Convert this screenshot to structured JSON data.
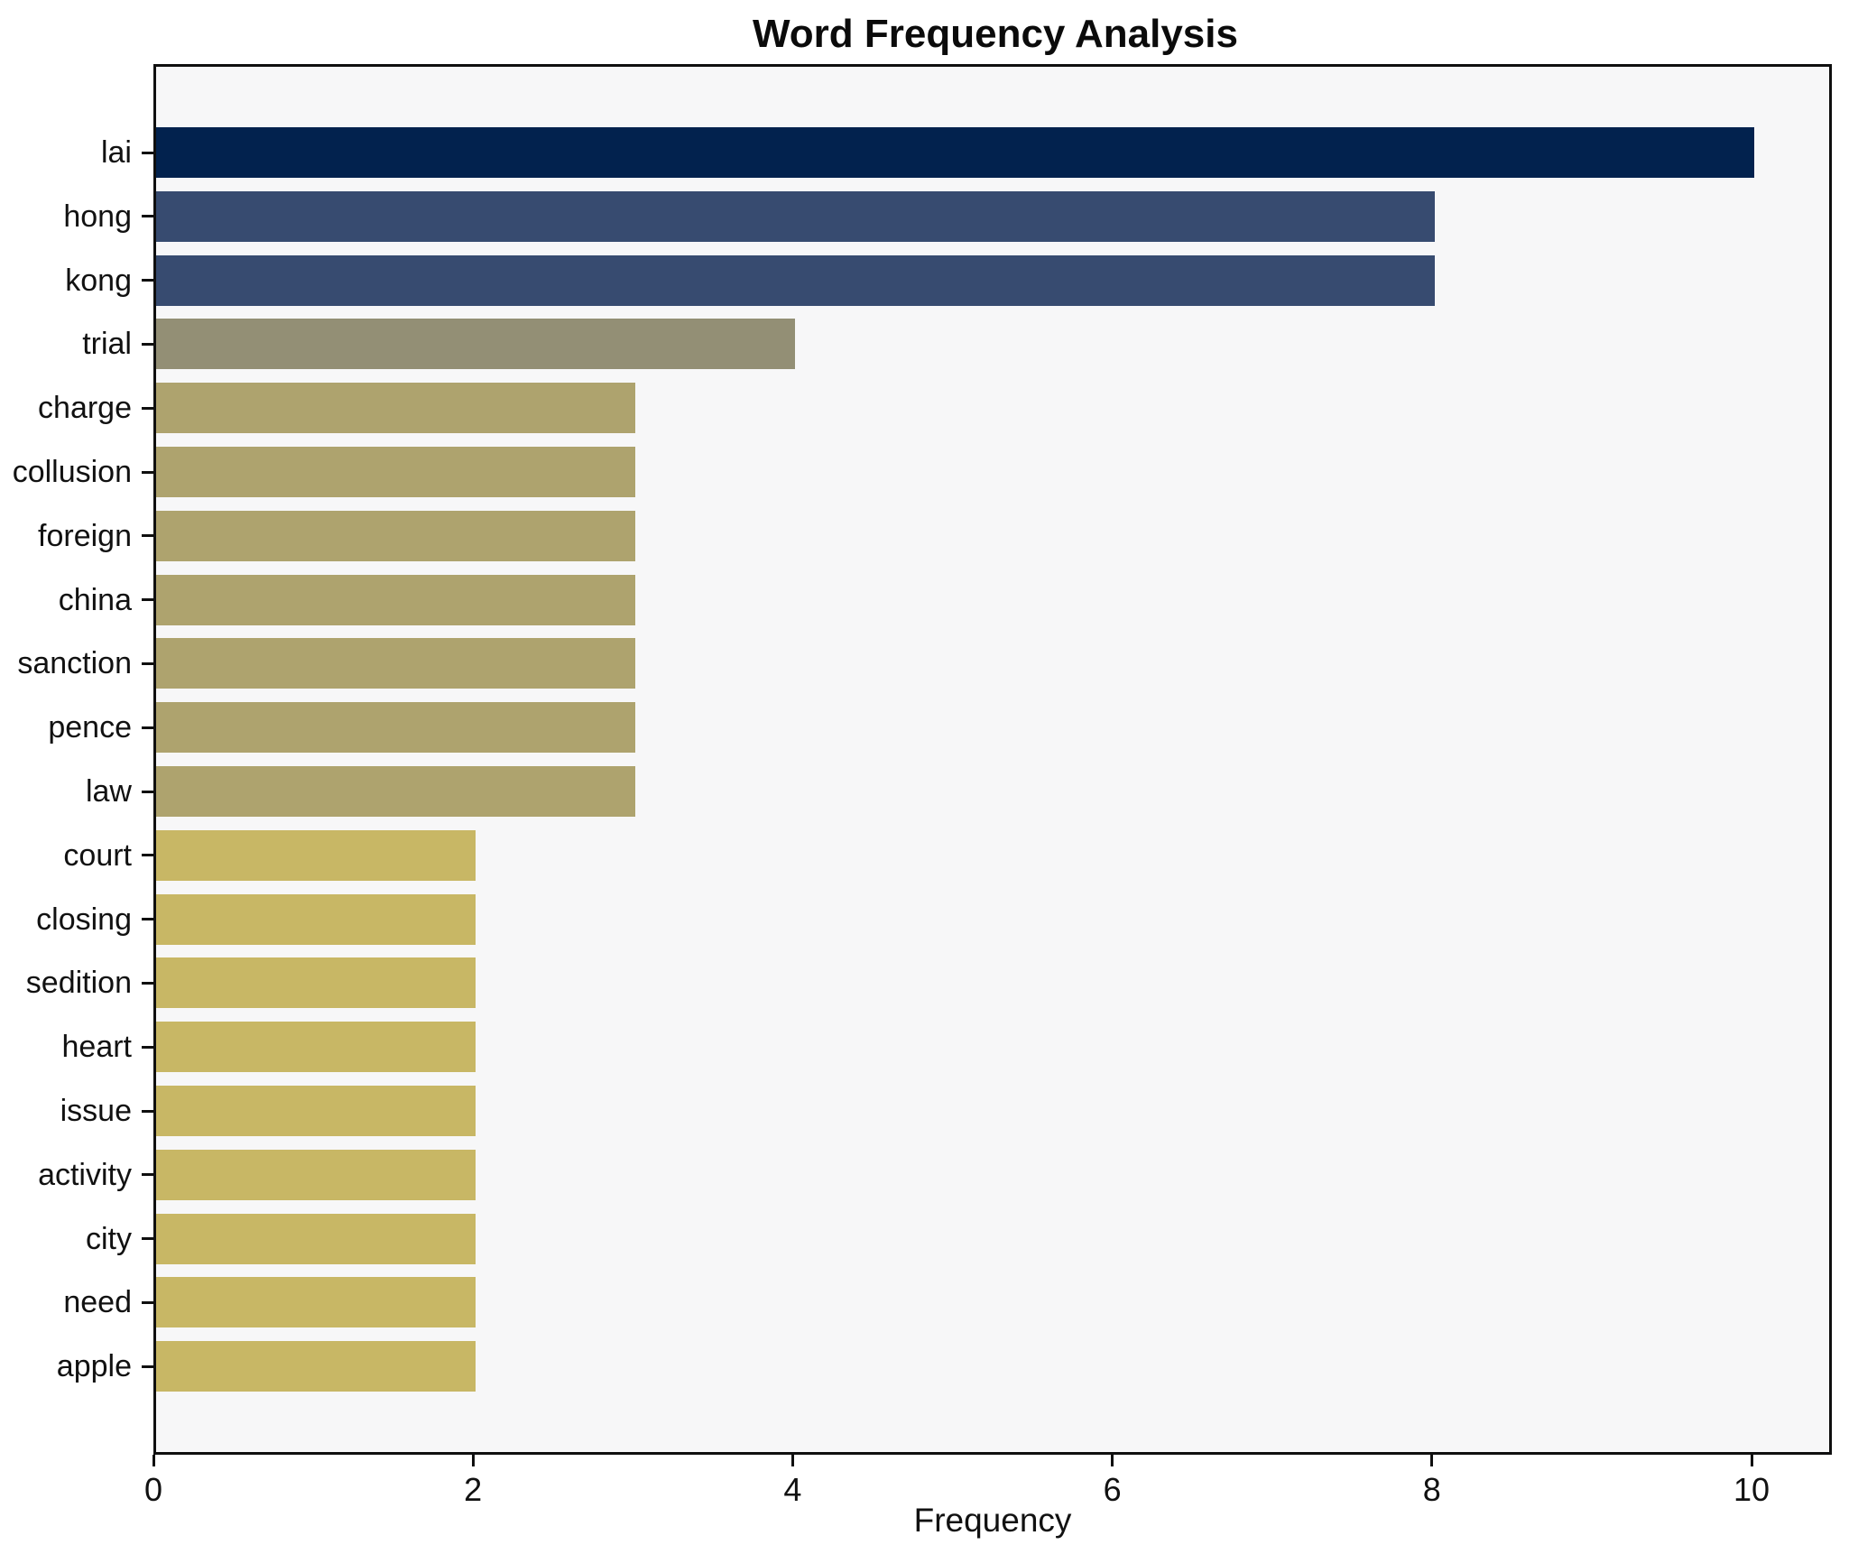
{
  "title": "Word Frequency Analysis",
  "chart_data": {
    "type": "bar",
    "orientation": "horizontal",
    "title": "Word Frequency Analysis",
    "xlabel": "Frequency",
    "ylabel": "",
    "categories": [
      "lai",
      "hong",
      "kong",
      "trial",
      "charge",
      "collusion",
      "foreign",
      "china",
      "sanction",
      "pence",
      "law",
      "court",
      "closing",
      "sedition",
      "heart",
      "issue",
      "activity",
      "city",
      "need",
      "apple"
    ],
    "values": [
      10,
      8,
      8,
      4,
      3,
      3,
      3,
      3,
      3,
      3,
      3,
      2,
      2,
      2,
      2,
      2,
      2,
      2,
      2,
      2
    ],
    "bar_colors": [
      "#02224e",
      "#374b70",
      "#374b70",
      "#938f75",
      "#aea36e",
      "#aea36e",
      "#aea36e",
      "#aea36e",
      "#aea36e",
      "#aea36e",
      "#aea36e",
      "#c8b765",
      "#c8b765",
      "#c8b765",
      "#c8b765",
      "#c8b765",
      "#c8b765",
      "#c8b765",
      "#c8b765",
      "#c8b765"
    ],
    "xticks": [
      0,
      2,
      4,
      6,
      8,
      10
    ],
    "xlim": [
      0,
      10.5
    ],
    "grid": false,
    "legend": false,
    "colors": {
      "plot_background": "#f7f7f8",
      "figure_background": "#ffffff",
      "spine": "#0f0f0f",
      "text": "#111111"
    }
  }
}
